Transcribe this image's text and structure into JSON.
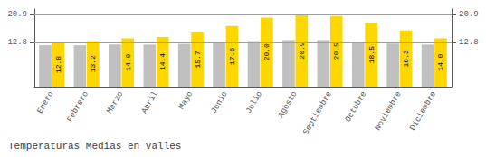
{
  "chart_data": {
    "type": "bar",
    "title": "Temperaturas Medias en valles",
    "categories": [
      "Enero",
      "Febrero",
      "Marzo",
      "Abril",
      "Mayo",
      "Junio",
      "Julio",
      "Agosto",
      "Septiembre",
      "Octubre",
      "Noviembre",
      "Diciembre"
    ],
    "series": [
      {
        "color": "#C0C0C0",
        "values": [
          12.0,
          12.0,
          12.2,
          12.2,
          12.4,
          12.8,
          13.2,
          13.5,
          13.5,
          13.0,
          12.5,
          12.2
        ]
      },
      {
        "color": "#FFD700",
        "values": [
          12.8,
          13.2,
          14.0,
          14.4,
          15.7,
          17.6,
          20.0,
          20.9,
          20.5,
          18.5,
          16.3,
          14.0
        ],
        "data_labels": true,
        "value_labels": [
          "12.8",
          "13.2",
          "14.0",
          "14.4",
          "15.7",
          "17.6",
          "20.0",
          "20.9",
          "20.5",
          "18.5",
          "16.3",
          "14.0"
        ]
      }
    ],
    "ylim": [
      0,
      22.5
    ],
    "yticks": [
      12.8,
      20.9
    ],
    "y2lim": [
      0,
      22.5
    ],
    "y2ticks": [
      12.8,
      20.9
    ],
    "grid": true
  }
}
